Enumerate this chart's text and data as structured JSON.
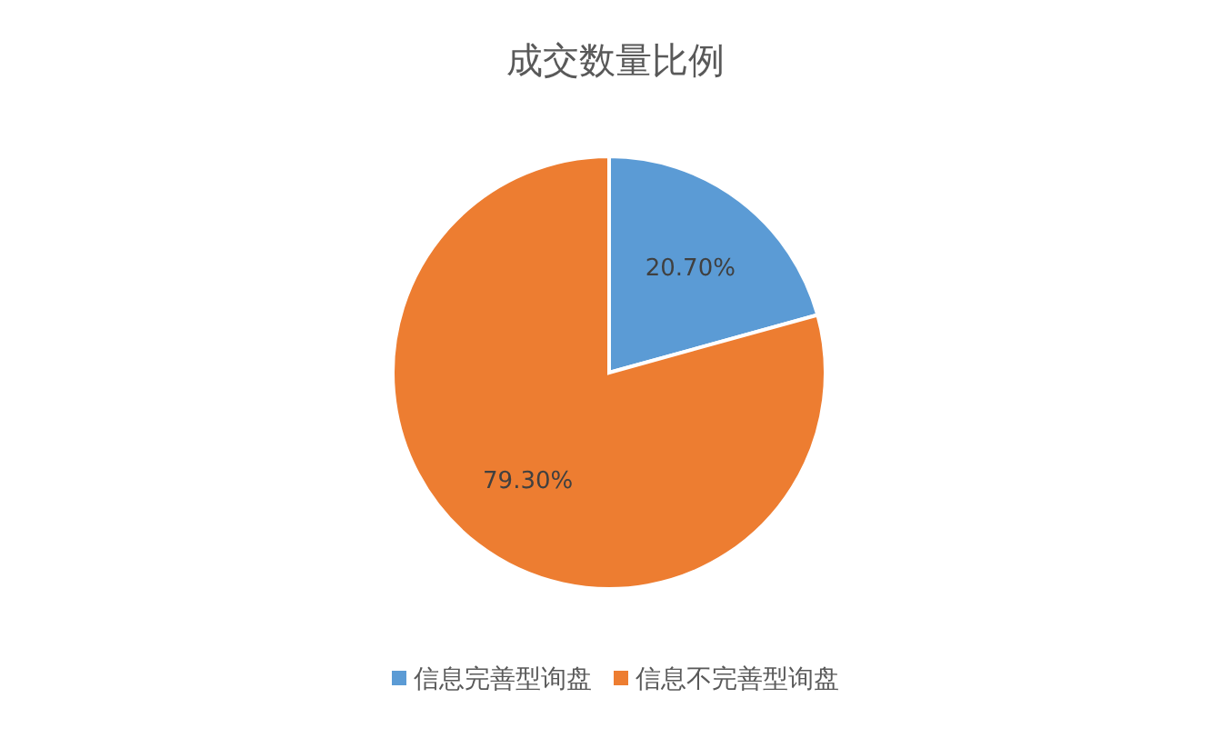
{
  "chart_data": {
    "type": "pie",
    "title": "成交数量比例",
    "categories": [
      "信息完善型询盘",
      "信息不完善型询盘"
    ],
    "values": [
      20.7,
      79.3
    ],
    "value_labels": [
      "20.70%",
      "79.30%"
    ],
    "colors": [
      "#5b9bd5",
      "#ed7d31"
    ],
    "legend": "bottom"
  }
}
